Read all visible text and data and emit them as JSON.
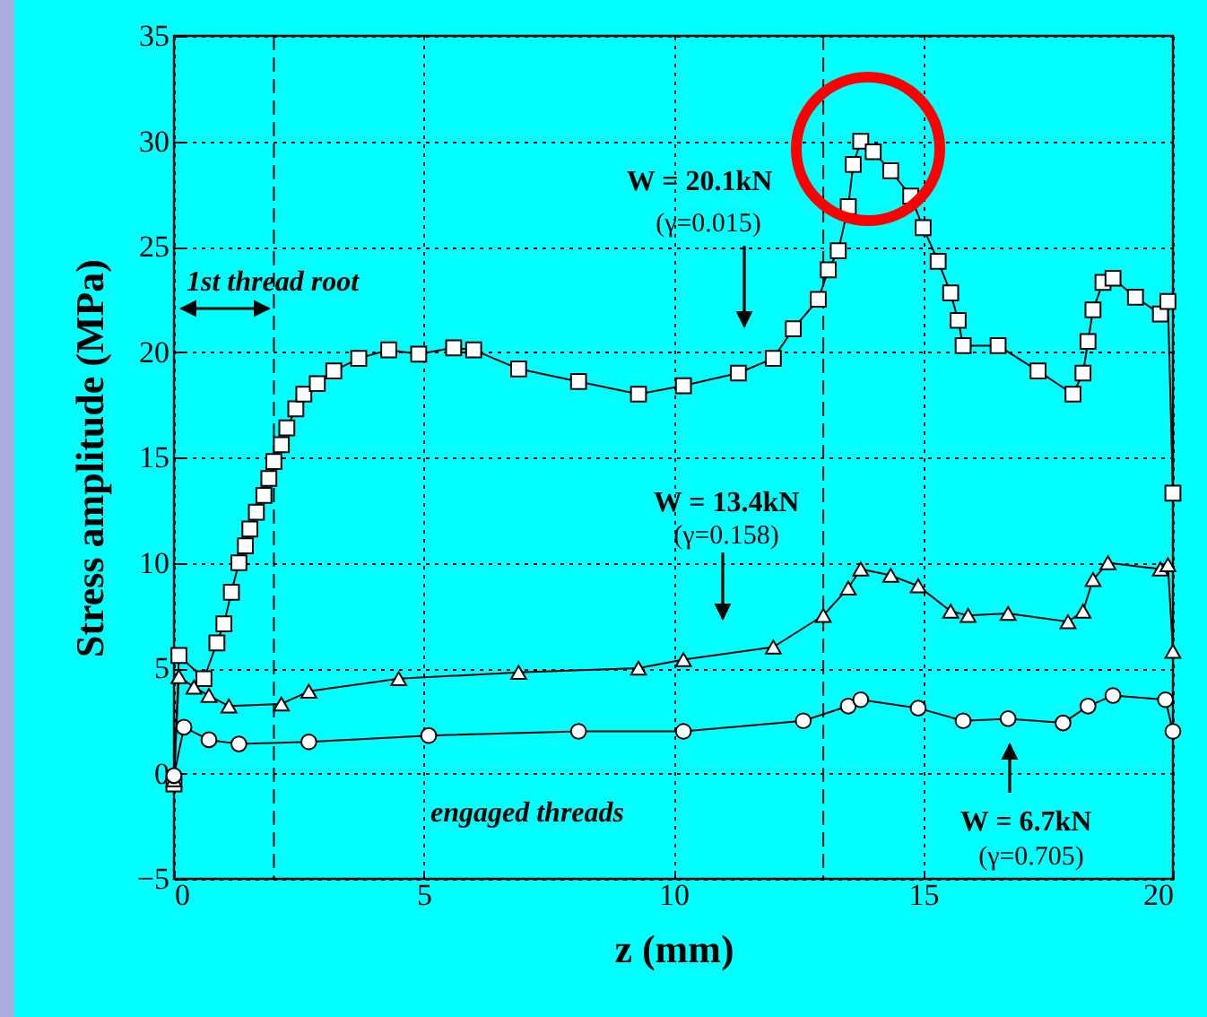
{
  "chart_data": {
    "type": "line",
    "xlabel": "z (mm)",
    "ylabel": "Stress amplitude (MPa)",
    "xlim": [
      0,
      20
    ],
    "ylim": [
      -5,
      35
    ],
    "xticks": [
      0,
      5,
      10,
      15,
      20
    ],
    "yticks": [
      -5,
      0,
      5,
      10,
      15,
      20,
      25,
      30,
      35
    ],
    "grid": true,
    "ref_lines": [
      {
        "axis": "x",
        "value": 2,
        "line_style": "dashed"
      },
      {
        "axis": "x",
        "value": 13,
        "line_style": "dashed"
      }
    ],
    "annotations": [
      "(γ=0.015)",
      "(γ=0.158)",
      "(γ=0.705)",
      "1st thread root",
      "engaged threads"
    ],
    "series": [
      {
        "name": "W = 20.1kN",
        "color": "#ffffff",
        "marker": "square",
        "x": [
          0,
          0.1,
          0.6,
          0.86,
          1.0,
          1.15,
          1.3,
          1.43,
          1.52,
          1.65,
          1.8,
          1.9,
          2.0,
          2.15,
          2.26,
          2.44,
          2.6,
          2.87,
          3.2,
          3.7,
          4.3,
          4.9,
          5.6,
          6.0,
          6.9,
          8.1,
          9.3,
          10.2,
          11.3,
          12,
          12.4,
          12.9,
          13.1,
          13.3,
          13.5,
          13.6,
          13.75,
          14.0,
          14.35,
          14.75,
          15.0,
          15.3,
          15.55,
          15.7,
          15.8,
          16.5,
          17.3,
          18.0,
          18.2,
          18.3,
          18.4,
          18.6,
          18.8,
          19.25,
          19.75,
          19.9,
          20.0
        ],
        "values": [
          -0.5,
          5.6,
          4.5,
          6.2,
          7.1,
          8.6,
          10,
          10.8,
          11.6,
          12.4,
          13.2,
          14,
          14.8,
          15.6,
          16.4,
          17.3,
          18,
          18.5,
          19.1,
          19.7,
          20.1,
          19.9,
          20.2,
          20.1,
          19.2,
          18.6,
          18,
          18.4,
          19,
          19.7,
          21.1,
          22.5,
          23.9,
          24.8,
          26.9,
          28.9,
          30,
          29.5,
          28.6,
          27.4,
          25.9,
          24.3,
          22.8,
          21.5,
          20.3,
          20.3,
          19.1,
          18,
          19,
          20.5,
          22,
          23.3,
          23.5,
          22.6,
          21.8,
          22.4,
          13.3
        ]
      },
      {
        "name": "W = 13.4kN",
        "color": "#ffffff",
        "marker": "triangle",
        "x": [
          0,
          0.1,
          0.4,
          0.7,
          1.1,
          2.15,
          2.7,
          4.5,
          6.9,
          9.3,
          10.2,
          12,
          13.0,
          13.5,
          13.75,
          14.35,
          14.9,
          15.55,
          15.9,
          16.7,
          17.9,
          18.2,
          18.4,
          18.7,
          19.75,
          19.9,
          20.0
        ],
        "values": [
          -0.3,
          4.6,
          4.1,
          3.7,
          3.2,
          3.3,
          3.9,
          4.5,
          4.8,
          5.0,
          5.4,
          6.0,
          7.5,
          8.8,
          9.7,
          9.4,
          8.9,
          7.7,
          7.5,
          7.6,
          7.2,
          7.7,
          9.2,
          10,
          9.7,
          9.9,
          5.8
        ]
      },
      {
        "name": "W = 6.7kN",
        "color": "#ffffff",
        "marker": "circle",
        "x": [
          0,
          0.2,
          0.7,
          1.3,
          2.7,
          5.1,
          8.1,
          10.2,
          12.6,
          13.5,
          13.75,
          14.9,
          15.8,
          16.7,
          17.8,
          18.3,
          18.8,
          19.85,
          20.0
        ],
        "values": [
          -0.1,
          2.2,
          1.6,
          1.4,
          1.5,
          1.8,
          2.0,
          2.0,
          2.5,
          3.2,
          3.5,
          3.1,
          2.5,
          2.6,
          2.4,
          3.2,
          3.7,
          3.5,
          2.0
        ]
      }
    ]
  }
}
